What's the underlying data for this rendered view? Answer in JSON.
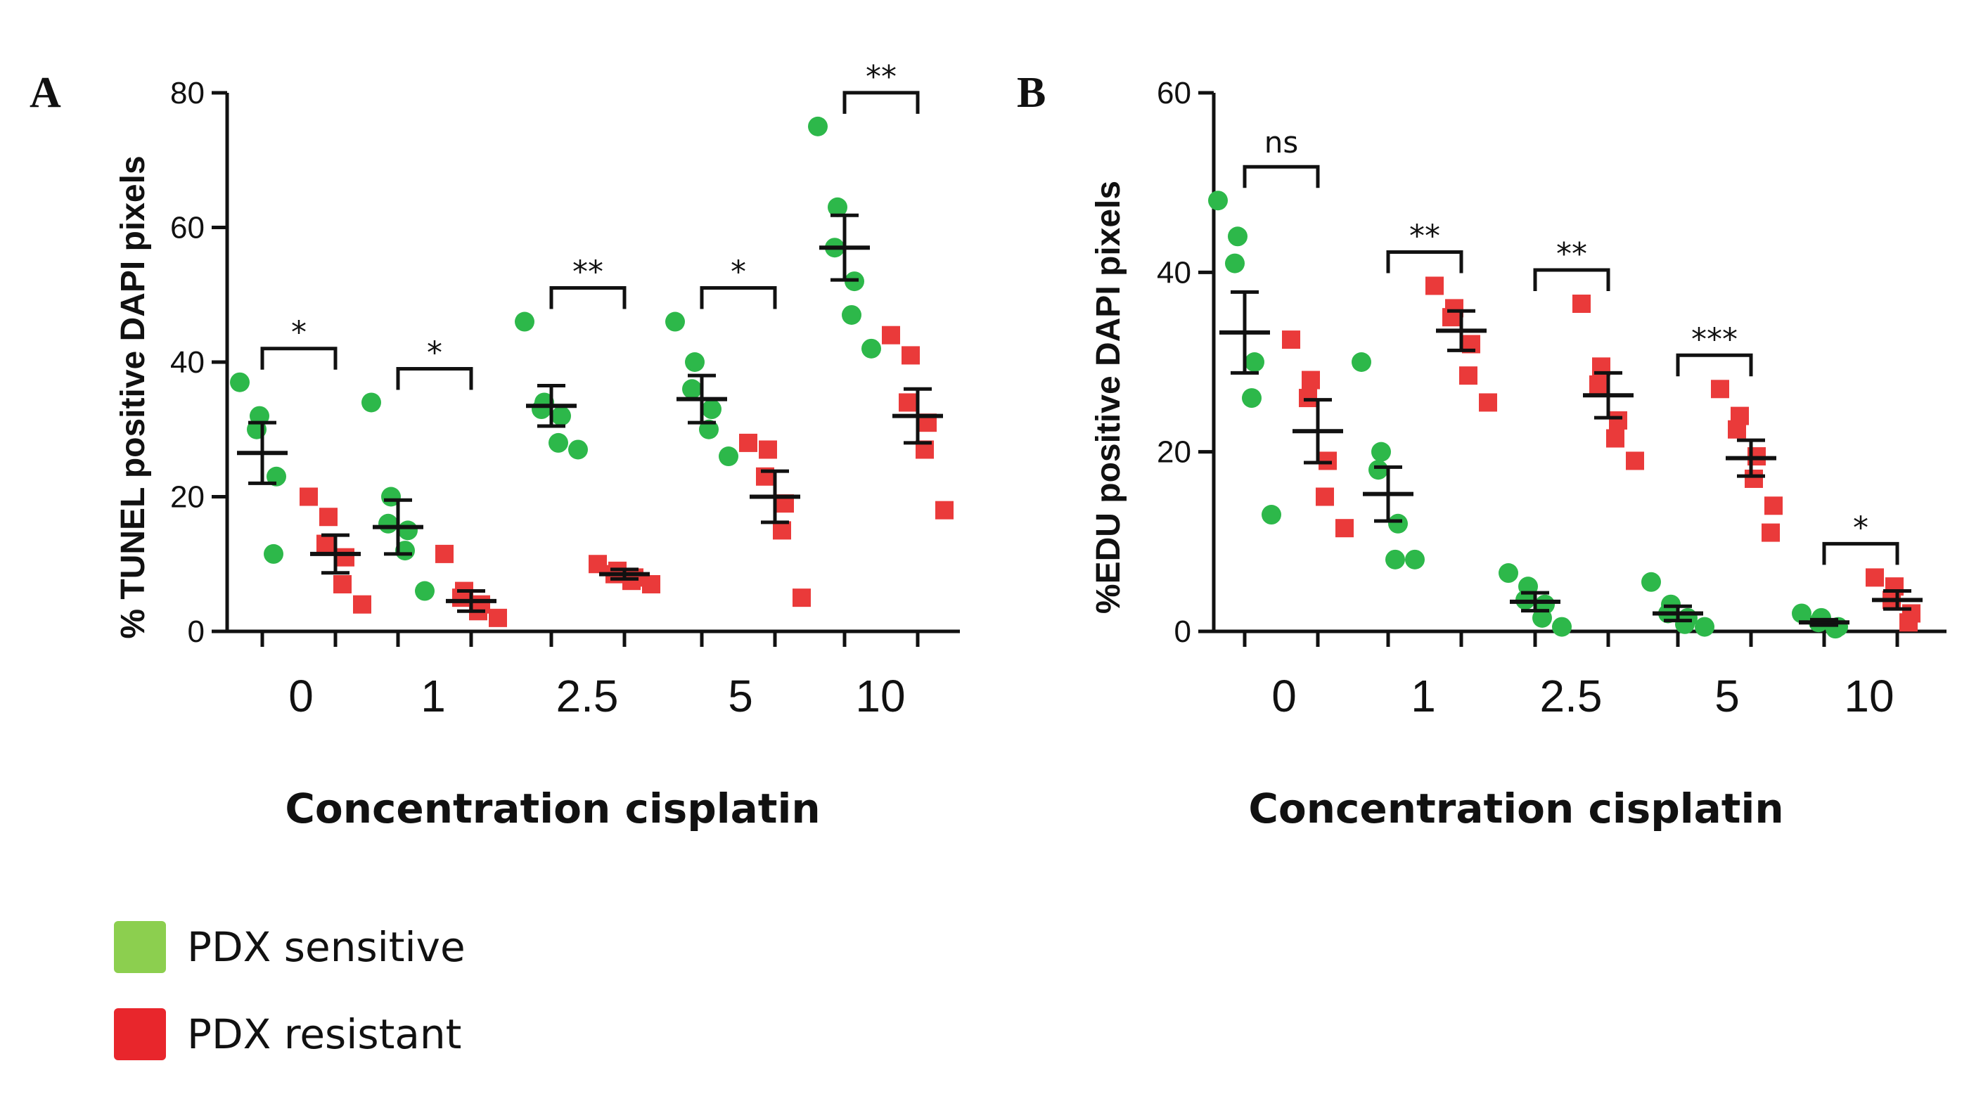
{
  "colors": {
    "sensitive_marker": "#2db84a",
    "resistant_marker": "#ea3a3a",
    "sensitive_legend": "#8ccf4f",
    "resistant_legend": "#e8262c",
    "axis": "#111111",
    "errorbar": "#111111"
  },
  "legend": {
    "sensitive": "PDX sensitive",
    "resistant": "PDX resistant"
  },
  "chart_data": [
    {
      "panel_letter": "A",
      "type": "scatter",
      "title": "",
      "xlabel": "Concentration cisplatin",
      "ylabel": "% TUNEL positive DAPI pixels",
      "categories": [
        "0",
        "1",
        "2.5",
        "5",
        "10"
      ],
      "ylim": [
        0,
        80
      ],
      "yticks": [
        "0",
        "20",
        "40",
        "60",
        "80"
      ],
      "legend_position": "bottom-left",
      "series": [
        {
          "name": "PDX sensitive",
          "marker": "circle",
          "values": [
            [
              37,
              32,
              30,
              23,
              11.5
            ],
            [
              34,
              20,
              16,
              15,
              12,
              6
            ],
            [
              46,
              34,
              33,
              32,
              28,
              27
            ],
            [
              46,
              40,
              36,
              33,
              30,
              26
            ],
            [
              75,
              63,
              57,
              52,
              47,
              42
            ]
          ],
          "mean": [
            26.5,
            15.5,
            33.5,
            34.5,
            57
          ],
          "sem": [
            4.5,
            4,
            3,
            3.5,
            4.8
          ]
        },
        {
          "name": "PDX resistant",
          "marker": "square",
          "values": [
            [
              20,
              17,
              13,
              11,
              7,
              4
            ],
            [
              11.5,
              6,
              5,
              4,
              3,
              2
            ],
            [
              10,
              9,
              8.5,
              8,
              7.5,
              7
            ],
            [
              28,
              27,
              23,
              19,
              15,
              5
            ],
            [
              44,
              41,
              34,
              31,
              27,
              18
            ]
          ],
          "mean": [
            11.5,
            4.5,
            8.5,
            20,
            32
          ],
          "sem": [
            2.8,
            1.5,
            0.7,
            3.8,
            4
          ]
        }
      ],
      "significance": [
        "*",
        "*",
        "**",
        "*",
        "**"
      ]
    },
    {
      "panel_letter": "B",
      "type": "scatter",
      "title": "",
      "xlabel": "Concentration cisplatin",
      "ylabel": "%EDU positive DAPI pixels",
      "categories": [
        "0",
        "1",
        "2.5",
        "5",
        "10"
      ],
      "ylim": [
        0,
        60
      ],
      "yticks": [
        "0",
        "20",
        "40",
        "60"
      ],
      "legend_position": "bottom-left",
      "series": [
        {
          "name": "PDX sensitive",
          "marker": "circle",
          "values": [
            [
              48,
              44,
              41,
              30,
              26,
              13
            ],
            [
              30,
              20,
              18,
              12,
              8,
              8
            ],
            [
              6.5,
              5,
              3.5,
              3,
              1.5,
              0.5
            ],
            [
              5.5,
              3,
              2,
              1.5,
              0.8,
              0.5
            ],
            [
              2,
              1.5,
              1,
              0.5,
              0.3
            ]
          ],
          "mean": [
            33.3,
            15.3,
            3.3,
            2,
            1
          ],
          "sem": [
            4.5,
            3,
            1,
            0.8,
            0.3
          ]
        },
        {
          "name": "PDX resistant",
          "marker": "square",
          "values": [
            [
              32.5,
              28,
              26,
              19,
              15,
              11.5
            ],
            [
              38.5,
              36,
              35,
              32,
              28.5,
              25.5
            ],
            [
              36.5,
              29.5,
              27.5,
              23.5,
              21.5,
              19
            ],
            [
              27,
              24,
              22.5,
              19.5,
              17,
              14,
              11
            ],
            [
              6,
              5,
              3.5,
              2,
              1
            ]
          ],
          "mean": [
            22.3,
            33.5,
            26.3,
            19.3,
            3.5
          ],
          "sem": [
            3.5,
            2.2,
            2.5,
            2,
            1
          ]
        }
      ],
      "significance": [
        "ns",
        "**",
        "**",
        "***",
        "*"
      ]
    }
  ]
}
